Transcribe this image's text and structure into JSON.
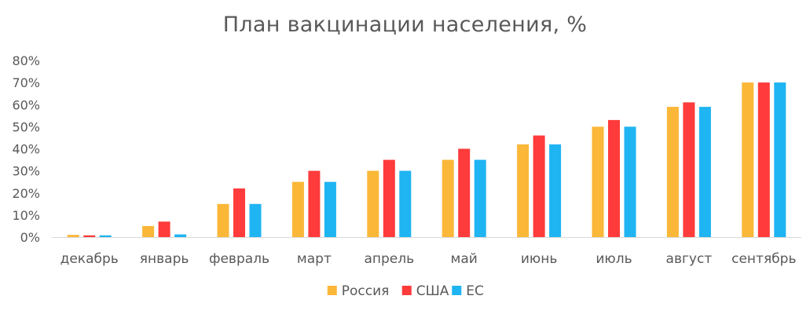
{
  "chart_data": {
    "type": "bar",
    "title": "План вакцинации населения, %",
    "xlabel": "",
    "ylabel": "",
    "categories": [
      "декабрь",
      "январь",
      "февраль",
      "март",
      "апрель",
      "май",
      "июнь",
      "июль",
      "август",
      "сентябрь"
    ],
    "series": [
      {
        "name": "Россия",
        "color": "#FBB738",
        "values": [
          1,
          5,
          15,
          25,
          30,
          35,
          42,
          50,
          59,
          70
        ]
      },
      {
        "name": "США",
        "color": "#FF3B3B",
        "values": [
          0.8,
          7,
          22,
          30,
          35,
          40,
          46,
          53,
          61,
          70
        ]
      },
      {
        "name": "ЕС",
        "color": "#1FB4F2",
        "values": [
          0.8,
          1.2,
          15,
          25,
          30,
          35,
          42,
          50,
          59,
          70
        ]
      }
    ],
    "ylim": [
      0,
      80
    ],
    "yticks": [
      "0%",
      "10%",
      "20%",
      "30%",
      "40%",
      "50%",
      "60%",
      "70%",
      "80%"
    ],
    "grid": false,
    "legend_position": "bottom"
  }
}
